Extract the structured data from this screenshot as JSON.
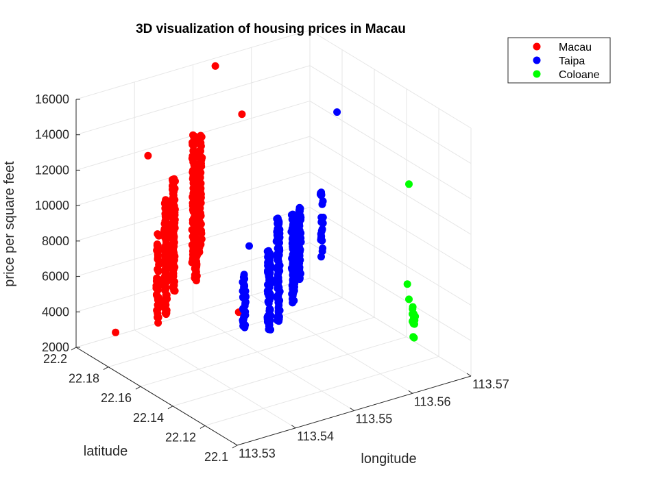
{
  "chart_data": {
    "type": "scatter",
    "title": "3D visualization of housing prices in Macau",
    "xlabel": "longitude",
    "ylabel": "latitude",
    "zlabel": "price per square feet",
    "xlim": [
      113.53,
      113.57
    ],
    "ylim": [
      22.1,
      22.2
    ],
    "zlim": [
      2000,
      16000
    ],
    "x_ticks": [
      "113.53",
      "113.54",
      "113.55",
      "113.56",
      "113.57"
    ],
    "y_ticks": [
      "22.1",
      "22.12",
      "22.14",
      "22.16",
      "22.18",
      "22.2"
    ],
    "z_ticks": [
      "2000",
      "4000",
      "6000",
      "8000",
      "10000",
      "12000",
      "14000",
      "16000"
    ],
    "grid": true,
    "legend_position": "top-right",
    "series": [
      {
        "name": "Macau",
        "color": "#ff0000",
        "clusters": [
          {
            "x": 113.542,
            "y": 22.188,
            "price_range": [
              3200,
              9800
            ],
            "count": 130
          },
          {
            "x": 113.545,
            "y": 22.194,
            "price_range": [
              4000,
              10500
            ],
            "count": 110
          },
          {
            "x": 113.549,
            "y": 22.196,
            "price_range": [
              5000,
              12500
            ],
            "count": 90
          },
          {
            "x": 113.548,
            "y": 22.191,
            "price_range": [
              4500,
              11000
            ],
            "count": 90
          },
          {
            "x": 113.551,
            "y": 22.199,
            "price_range": [
              5000,
              12000
            ],
            "count": 60
          },
          {
            "x": 113.539,
            "y": 22.182,
            "price_range": [
              3500,
              8500
            ],
            "count": 45
          }
        ],
        "points": [
          {
            "x": 113.553,
            "y": 22.197,
            "price": 15800
          },
          {
            "x": 113.539,
            "y": 22.188,
            "price": 12600
          },
          {
            "x": 113.557,
            "y": 22.195,
            "price": 12800
          },
          {
            "x": 113.549,
            "y": 22.168,
            "price": 3900
          },
          {
            "x": 113.534,
            "y": 22.19,
            "price": 3000
          }
        ]
      },
      {
        "name": "Taipa",
        "color": "#0000ff",
        "clusters": [
          {
            "x": 113.553,
            "y": 22.158,
            "price_range": [
              3500,
              9500
            ],
            "count": 100
          },
          {
            "x": 113.555,
            "y": 22.156,
            "price_range": [
              4500,
              9500
            ],
            "count": 90
          },
          {
            "x": 113.552,
            "y": 22.16,
            "price_range": [
              3000,
              7500
            ],
            "count": 70
          },
          {
            "x": 113.558,
            "y": 22.163,
            "price_range": [
              5000,
              9200
            ],
            "count": 70
          },
          {
            "x": 113.561,
            "y": 22.16,
            "price_range": [
              6200,
              10000
            ],
            "count": 25
          },
          {
            "x": 113.548,
            "y": 22.161,
            "price_range": [
              3500,
              6500
            ],
            "count": 40
          }
        ],
        "points": [
          {
            "x": 113.565,
            "y": 22.165,
            "price": 13800
          },
          {
            "x": 113.553,
            "y": 22.176,
            "price": 6800
          }
        ]
      },
      {
        "name": "Coloane",
        "color": "#00ff00",
        "clusters": [
          {
            "x": 113.566,
            "y": 22.121,
            "price_range": [
              3200,
              5000
            ],
            "count": 14
          }
        ],
        "points": [
          {
            "x": 113.566,
            "y": 22.124,
            "price": 11900
          },
          {
            "x": 113.566,
            "y": 22.125,
            "price": 6200
          },
          {
            "x": 113.566,
            "y": 22.124,
            "price": 5400
          },
          {
            "x": 113.565,
            "y": 22.118,
            "price": 5400
          }
        ]
      }
    ]
  }
}
